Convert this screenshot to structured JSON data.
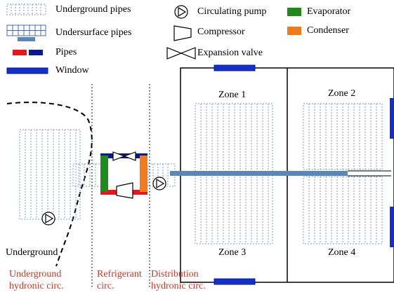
{
  "legend": {
    "underground_pipes": "Underground pipes",
    "undersurface_pipes": "Undersurface pipes",
    "pipes": "Pipes",
    "window": "Window",
    "circulating_pump": "Circulating pump",
    "compressor": "Compressor",
    "expansion_valve": "Expansion valve",
    "evaporator": "Evaporator",
    "condenser": "Condenser"
  },
  "zones": {
    "zone1": "Zone 1",
    "zone2": "Zone 2",
    "zone3": "Zone 3",
    "zone4": "Zone 4"
  },
  "labels": {
    "underground": "Underground",
    "underground_circ_line1": "Underground",
    "underground_circ_line2": "hydronic circ.",
    "refrigerant_circ_line1": "Refrigerant",
    "refrigerant_circ_line2": "circ.",
    "distribution_circ_line1": "Distribution",
    "distribution_circ_line2": "hydronic circ."
  },
  "colors": {
    "pipe_red": "#e8141e",
    "pipe_navy": "#0a1a8a",
    "window_blue": "#1530c8",
    "evaporator_green": "#1e8a1e",
    "condenser_orange": "#f07a1e",
    "main_pipe_blue": "#5b86b8",
    "grid_line": "#7f98c8",
    "circuit_label_red": "#c0392b"
  }
}
